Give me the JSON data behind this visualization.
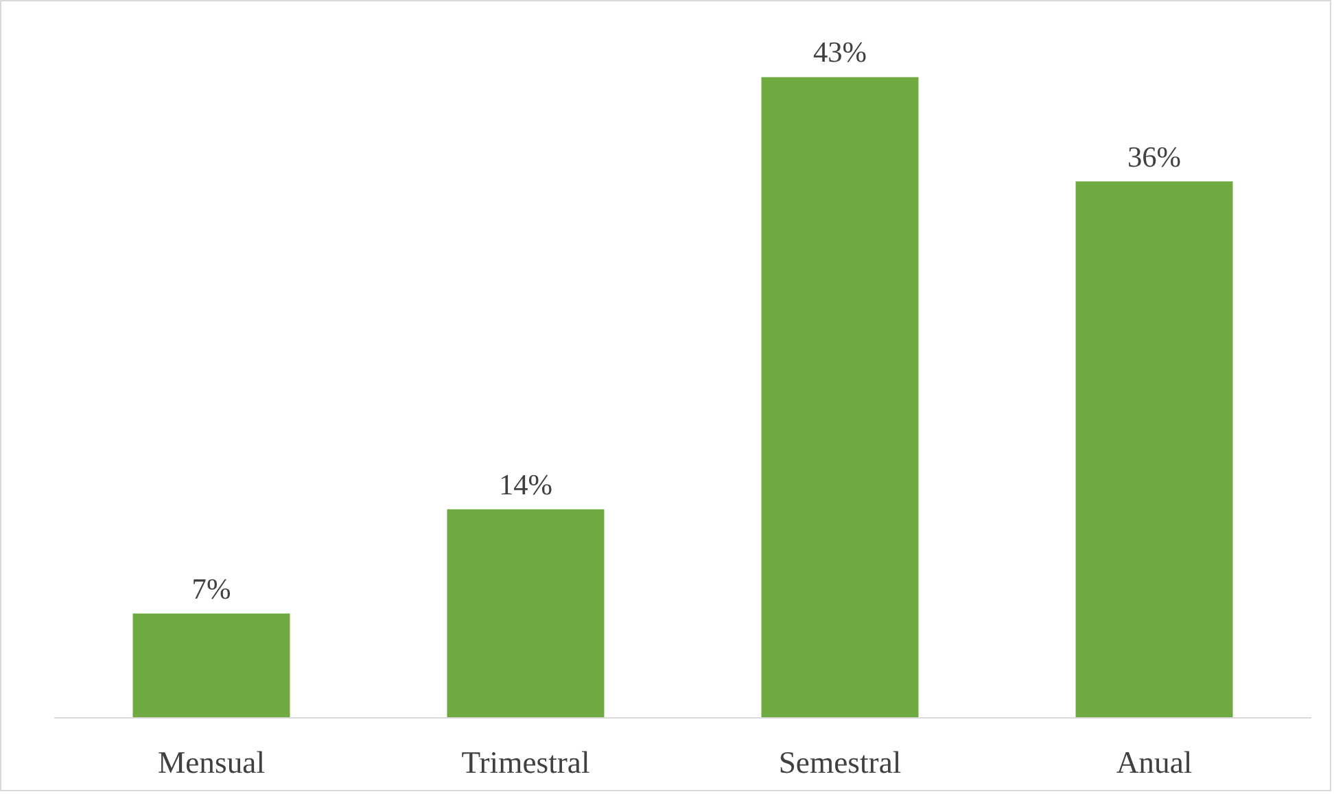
{
  "chart_data": {
    "type": "bar",
    "categories": [
      "Mensual",
      "Trimestral",
      "Semestral",
      "Anual"
    ],
    "values": [
      7,
      14,
      43,
      36
    ],
    "value_labels": [
      "7%",
      "14%",
      "43%",
      "36%"
    ],
    "color": "#6eaa3f"
  }
}
